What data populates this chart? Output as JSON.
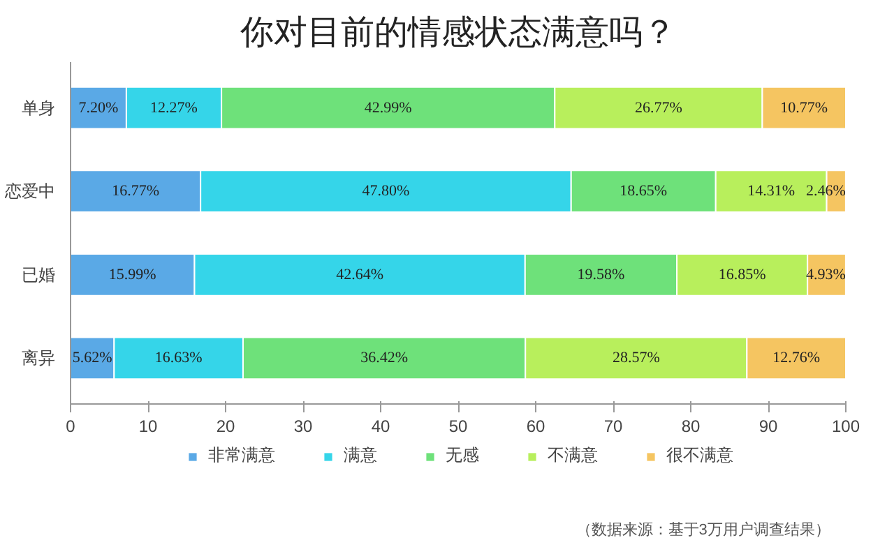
{
  "chart_data": {
    "type": "bar",
    "orientation": "horizontal",
    "stacked": true,
    "title": "你对目前的情感状态满意吗？",
    "categories": [
      "单身",
      "恋爱中",
      "已婚",
      "离异"
    ],
    "series": [
      {
        "name": "非常满意",
        "color": "#5aa9e6",
        "values": [
          7.2,
          16.77,
          15.99,
          5.62
        ],
        "value_labels": [
          "7.20%",
          "16.77%",
          "15.99%",
          "5.62%"
        ]
      },
      {
        "name": "满意",
        "color": "#35d5e9",
        "values": [
          12.27,
          47.8,
          42.64,
          16.63
        ],
        "value_labels": [
          "12.27%",
          "47.80%",
          "42.64%",
          "16.63%"
        ]
      },
      {
        "name": "无感",
        "color": "#6ee17a",
        "values": [
          42.99,
          18.65,
          19.58,
          36.42
        ],
        "value_labels": [
          "42.99%",
          "18.65%",
          "19.58%",
          "36.42%"
        ]
      },
      {
        "name": "不满意",
        "color": "#b8ef5c",
        "values": [
          26.77,
          14.31,
          16.85,
          28.57
        ],
        "value_labels": [
          "26.77%",
          "14.31%",
          "16.85%",
          "28.57%"
        ]
      },
      {
        "name": "很不满意",
        "color": "#f5c561",
        "values": [
          10.77,
          2.46,
          4.93,
          12.76
        ],
        "value_labels": [
          "10.77%",
          "2.46%",
          "4.93%",
          "12.76%"
        ]
      }
    ],
    "xlim": [
      0,
      100
    ],
    "xticks": [
      0,
      10,
      20,
      30,
      40,
      50,
      60,
      70,
      80,
      90,
      100
    ],
    "legend": "bottom",
    "grid": false,
    "annotations": [
      "（数据来源：基于3万用户调查结果）"
    ]
  }
}
